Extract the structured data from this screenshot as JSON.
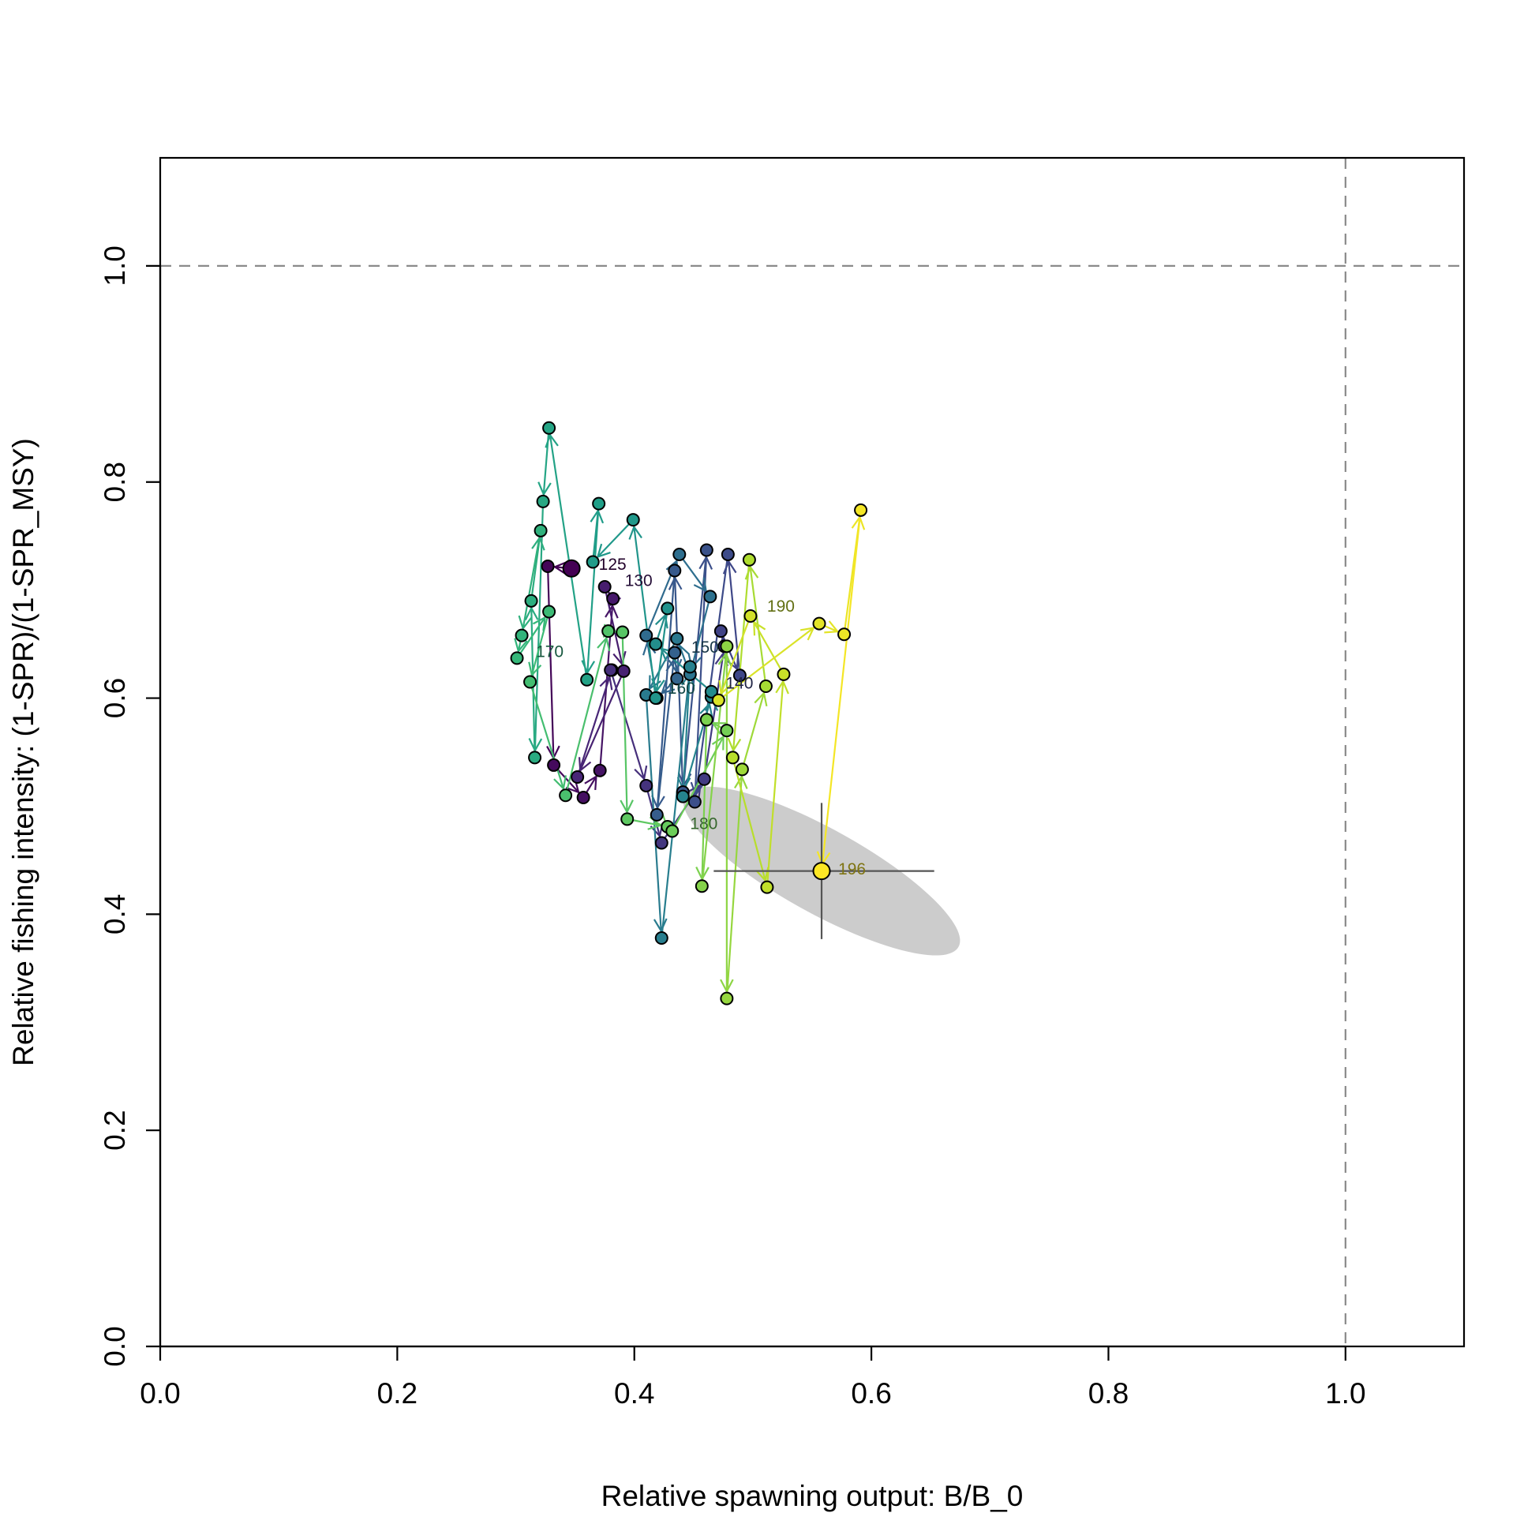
{
  "chart_data": {
    "type": "scatter",
    "title": "",
    "xlabel": "Relative spawning output: B/B_0",
    "ylabel": "Relative fishing intensity: (1-SPR)/(1-SPR_MSY)",
    "xlim": [
      0,
      1.1
    ],
    "ylim": [
      0,
      1.1
    ],
    "xticks": [
      "0.0",
      "0.2",
      "0.4",
      "0.6",
      "0.8",
      "1.0"
    ],
    "yticks": [
      "0.0",
      "0.2",
      "0.4",
      "0.6",
      "0.8",
      "1.0"
    ],
    "reference_lines": {
      "x": 1.0,
      "y": 1.0
    },
    "grid": false,
    "colormap": "viridis",
    "trajectory": [
      {
        "x": 0.347,
        "y": 0.72
      },
      {
        "x": 0.327,
        "y": 0.722
      },
      {
        "x": 0.332,
        "y": 0.538
      },
      {
        "x": 0.357,
        "y": 0.508
      },
      {
        "x": 0.371,
        "y": 0.533
      },
      {
        "x": 0.382,
        "y": 0.692
      },
      {
        "x": 0.375,
        "y": 0.703
      },
      {
        "x": 0.391,
        "y": 0.625
      },
      {
        "x": 0.352,
        "y": 0.527
      },
      {
        "x": 0.381,
        "y": 0.626
      },
      {
        "x": 0.38,
        "y": 0.626
      },
      {
        "x": 0.41,
        "y": 0.519
      },
      {
        "x": 0.423,
        "y": 0.466
      },
      {
        "x": 0.459,
        "y": 0.525
      },
      {
        "x": 0.476,
        "y": 0.648
      },
      {
        "x": 0.473,
        "y": 0.662
      },
      {
        "x": 0.489,
        "y": 0.621
      },
      {
        "x": 0.479,
        "y": 0.733
      },
      {
        "x": 0.451,
        "y": 0.504
      },
      {
        "x": 0.461,
        "y": 0.737
      },
      {
        "x": 0.441,
        "y": 0.513
      },
      {
        "x": 0.434,
        "y": 0.718
      },
      {
        "x": 0.419,
        "y": 0.492
      },
      {
        "x": 0.434,
        "y": 0.642
      },
      {
        "x": 0.436,
        "y": 0.618
      },
      {
        "x": 0.419,
        "y": 0.6
      },
      {
        "x": 0.41,
        "y": 0.658
      },
      {
        "x": 0.438,
        "y": 0.733
      },
      {
        "x": 0.464,
        "y": 0.694
      },
      {
        "x": 0.447,
        "y": 0.622
      },
      {
        "x": 0.436,
        "y": 0.655
      },
      {
        "x": 0.41,
        "y": 0.603
      },
      {
        "x": 0.423,
        "y": 0.378
      },
      {
        "x": 0.447,
        "y": 0.629
      },
      {
        "x": 0.441,
        "y": 0.509
      },
      {
        "x": 0.465,
        "y": 0.601
      },
      {
        "x": 0.465,
        "y": 0.606
      },
      {
        "x": 0.418,
        "y": 0.65
      },
      {
        "x": 0.428,
        "y": 0.683
      },
      {
        "x": 0.418,
        "y": 0.6
      },
      {
        "x": 0.399,
        "y": 0.765
      },
      {
        "x": 0.365,
        "y": 0.726
      },
      {
        "x": 0.37,
        "y": 0.78
      },
      {
        "x": 0.36,
        "y": 0.617
      },
      {
        "x": 0.328,
        "y": 0.85
      },
      {
        "x": 0.323,
        "y": 0.782
      },
      {
        "x": 0.316,
        "y": 0.545
      },
      {
        "x": 0.313,
        "y": 0.69
      },
      {
        "x": 0.321,
        "y": 0.755
      },
      {
        "x": 0.305,
        "y": 0.658
      },
      {
        "x": 0.301,
        "y": 0.637
      },
      {
        "x": 0.328,
        "y": 0.68
      },
      {
        "x": 0.312,
        "y": 0.615
      },
      {
        "x": 0.342,
        "y": 0.51
      },
      {
        "x": 0.378,
        "y": 0.662
      },
      {
        "x": 0.39,
        "y": 0.661
      },
      {
        "x": 0.394,
        "y": 0.488
      },
      {
        "x": 0.428,
        "y": 0.481
      },
      {
        "x": 0.432,
        "y": 0.477
      },
      {
        "x": 0.478,
        "y": 0.57
      },
      {
        "x": 0.461,
        "y": 0.58
      },
      {
        "x": 0.457,
        "y": 0.426
      },
      {
        "x": 0.478,
        "y": 0.648
      },
      {
        "x": 0.478,
        "y": 0.322
      },
      {
        "x": 0.491,
        "y": 0.534
      },
      {
        "x": 0.511,
        "y": 0.611
      },
      {
        "x": 0.497,
        "y": 0.728
      },
      {
        "x": 0.483,
        "y": 0.545
      },
      {
        "x": 0.512,
        "y": 0.425
      },
      {
        "x": 0.526,
        "y": 0.622
      },
      {
        "x": 0.498,
        "y": 0.676
      },
      {
        "x": 0.471,
        "y": 0.598
      },
      {
        "x": 0.556,
        "y": 0.669
      },
      {
        "x": 0.577,
        "y": 0.659
      },
      {
        "x": 0.591,
        "y": 0.774
      },
      {
        "x": 0.558,
        "y": 0.44
      }
    ],
    "year_labels": [
      {
        "text": "125",
        "x": 0.37,
        "y": 0.724
      },
      {
        "text": "130",
        "x": 0.392,
        "y": 0.709
      },
      {
        "text": "140",
        "x": 0.477,
        "y": 0.614
      },
      {
        "text": "150",
        "x": 0.448,
        "y": 0.647
      },
      {
        "text": "160",
        "x": 0.428,
        "y": 0.609
      },
      {
        "text": "170",
        "x": 0.317,
        "y": 0.643
      },
      {
        "text": "180",
        "x": 0.447,
        "y": 0.484
      },
      {
        "text": "190",
        "x": 0.512,
        "y": 0.685
      },
      {
        "text": "196",
        "x": 0.572,
        "y": 0.442
      }
    ],
    "final_point": {
      "year": "196",
      "x": 0.558,
      "y": 0.44,
      "x_interval": [
        0.467,
        0.653
      ],
      "y_interval": [
        0.377,
        0.503
      ],
      "ellipse_color": "#cccccc",
      "crosshair_color": "#555555"
    }
  }
}
